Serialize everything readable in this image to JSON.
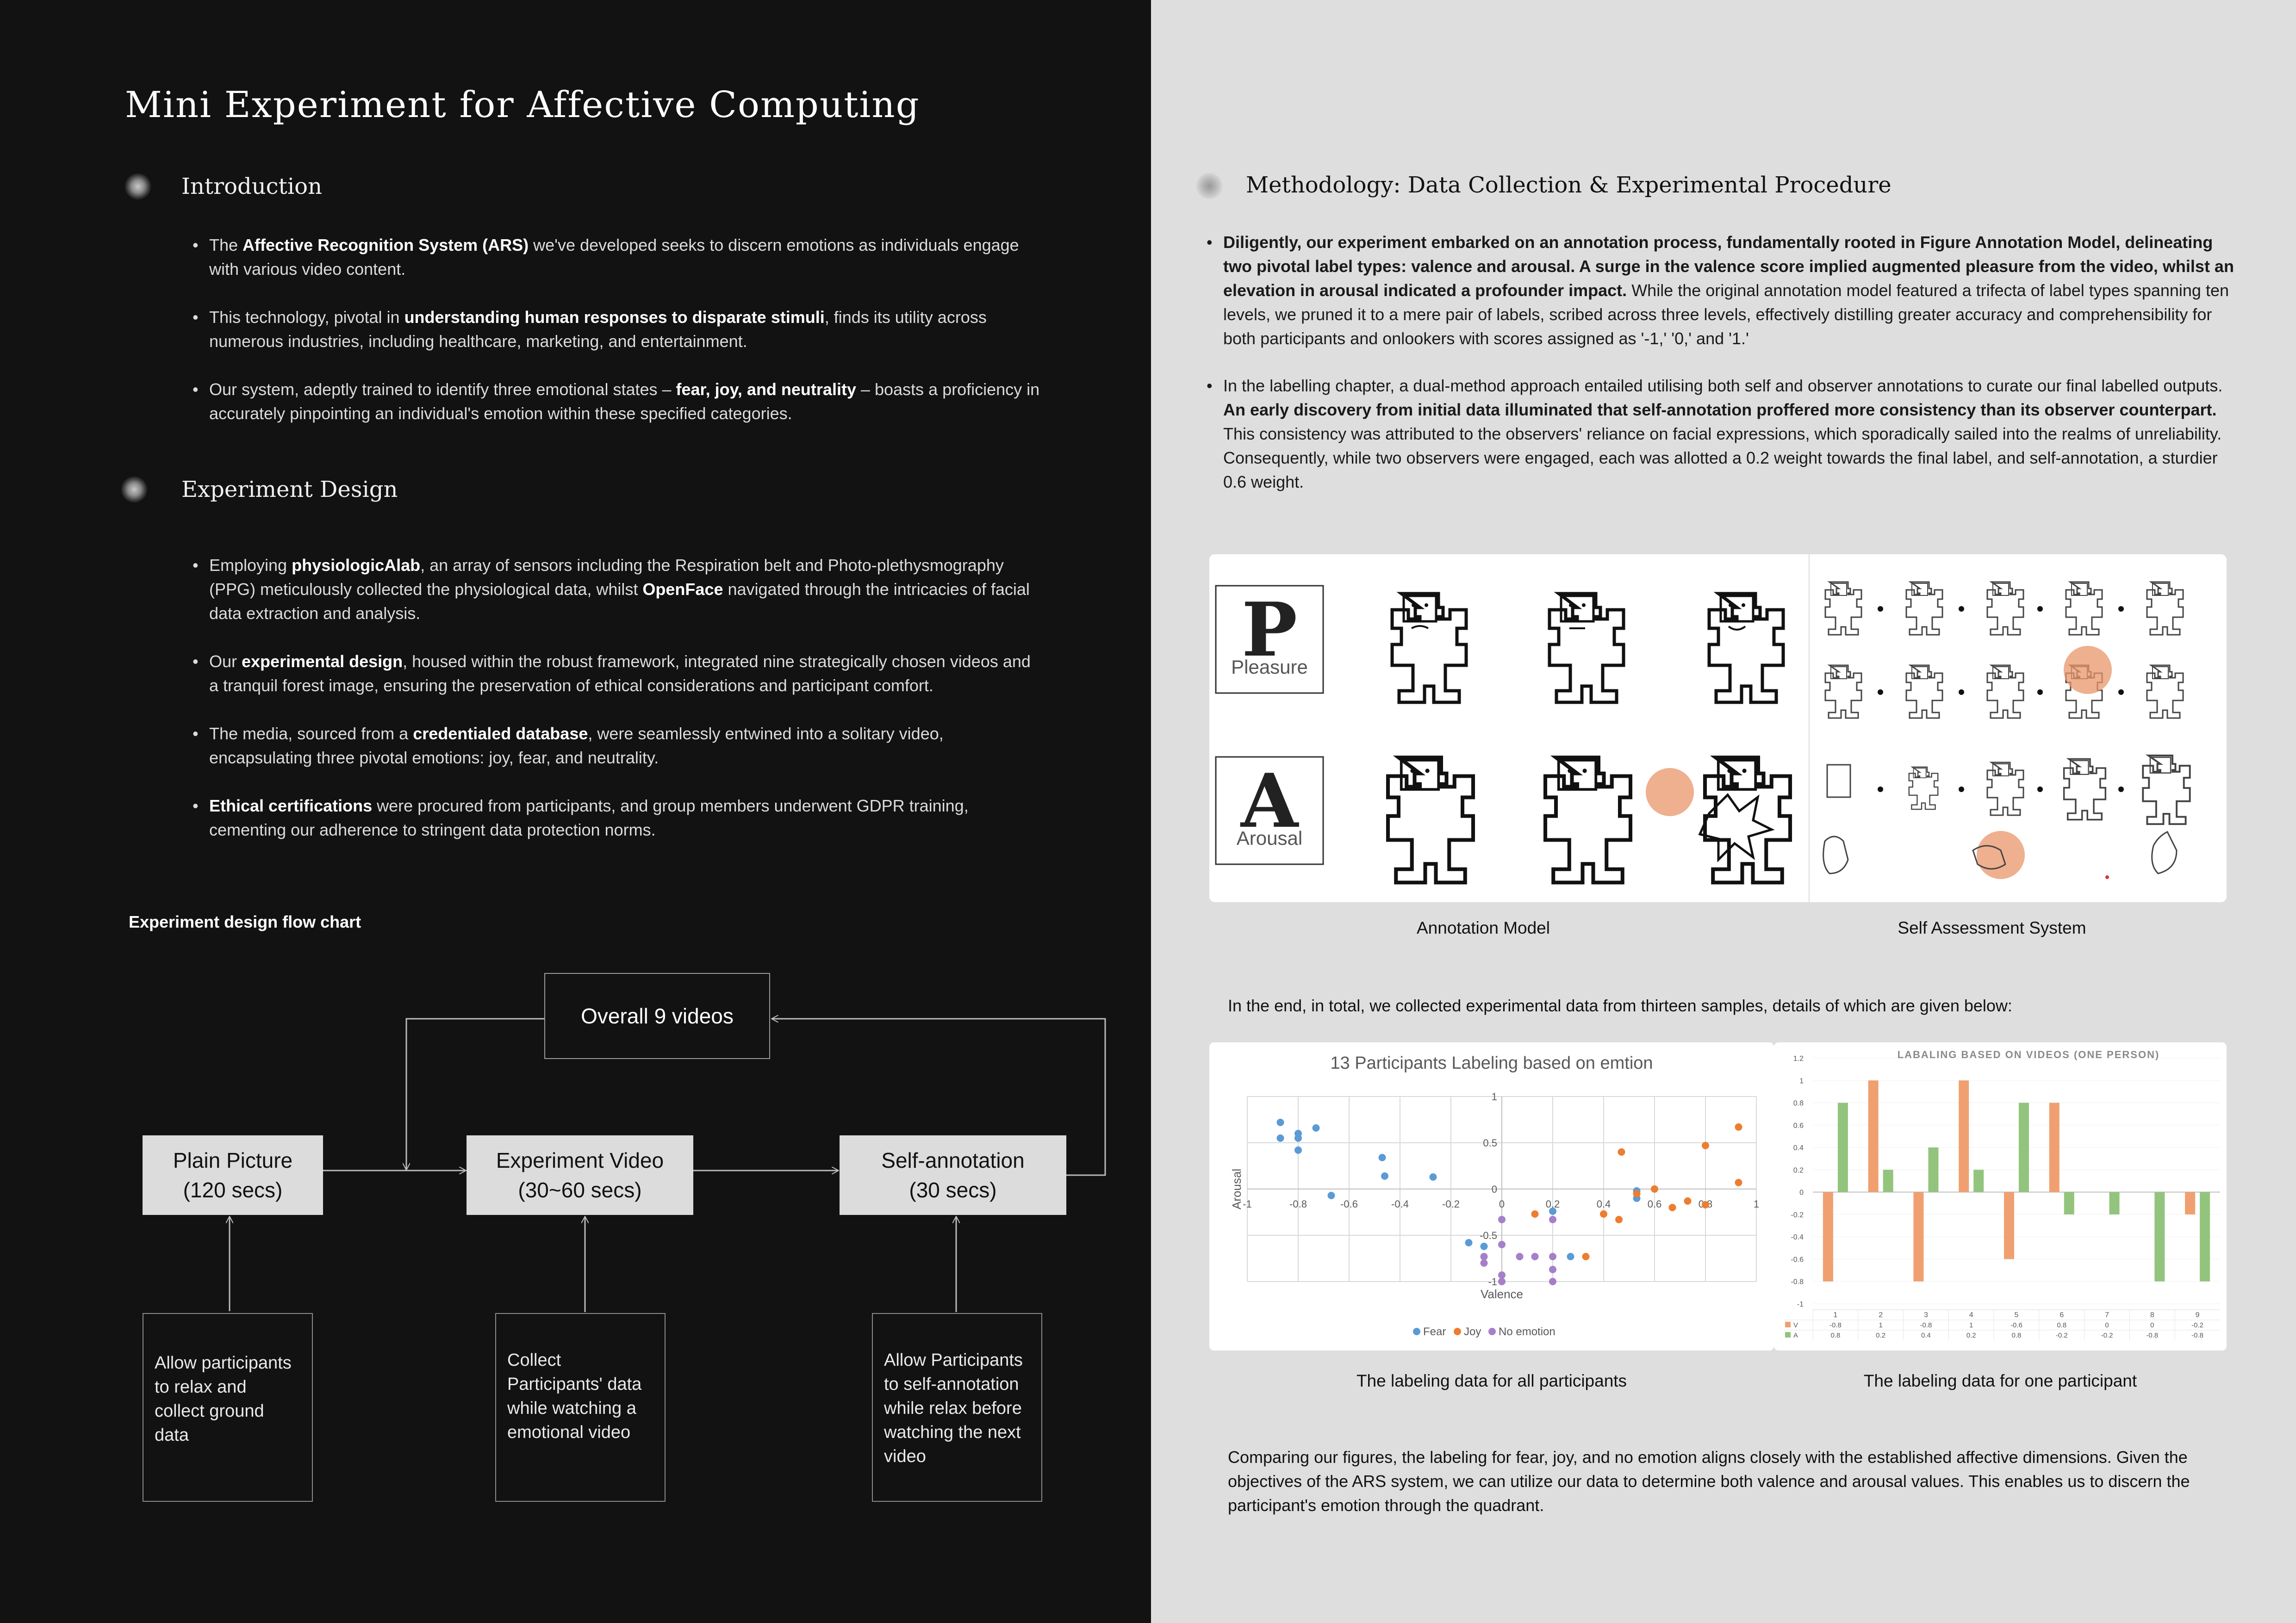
{
  "title": "Mini Experiment for Affective Computing",
  "intro": {
    "heading": "Introduction",
    "bullets": [
      {
        "pre": "The ",
        "bold": "Affective Recognition System (ARS)",
        "post": " we've developed seeks to discern emotions as individuals engage with various video content."
      },
      {
        "pre": "This technology, pivotal in ",
        "bold": "understanding human responses to disparate stimuli",
        "post": ", finds its utility across numerous industries, including healthcare, marketing, and entertainment."
      },
      {
        "pre": "Our system, adeptly trained to identify three emotional states – ",
        "bold": "fear, joy, and neutrality",
        "post": " – boasts a proficiency in accurately pinpointing an individual's emotion within these specified categories."
      }
    ]
  },
  "design": {
    "heading": "Experiment Design",
    "b1": {
      "t1": "Employing ",
      "b1": "physiologicAlab",
      "t2": ", an array of sensors including the Respiration belt and Photo-plethysmography (PPG) meticulously collected the physiological data, whilst ",
      "b2": "OpenFace",
      "t3": " navigated through the intricacies of facial data extraction and analysis."
    },
    "bullets": [
      {
        "pre": "Our ",
        "bold": "experimental design",
        "post": ", housed within the robust framework, integrated nine strategically chosen videos and a tranquil forest image, ensuring the preservation of ethical considerations and participant comfort."
      },
      {
        "pre": "The media, sourced from a ",
        "bold": "credentialed database",
        "post": ", were seamlessly entwined into a solitary video, encapsulating three pivotal emotions: joy, fear, and neutrality."
      },
      {
        "pre": "",
        "bold": "Ethical certifications",
        "post": " were procured from participants, and group members underwent GDPR training, cementing our adherence to stringent data protection norms."
      }
    ]
  },
  "flowchart": {
    "label": "Experiment design flow chart",
    "top": "Overall 9 videos",
    "steps": [
      {
        "line1": "Plain Picture",
        "line2": "(120 secs)",
        "note": "Allow participants to relax and collect ground data"
      },
      {
        "line1": "Experiment Video",
        "line2": "(30~60 secs)",
        "note": "Collect Participants' data while watching a emotional video"
      },
      {
        "line1": "Self-annotation",
        "line2": "(30 secs)",
        "note": "Allow Participants to self-annotation while relax before watching the next video"
      }
    ]
  },
  "methodology": {
    "heading": "Methodology: Data Collection & Experimental Procedure",
    "b1": {
      "bold": "Diligently, our experiment embarked on an annotation process, fundamentally rooted in Figure Annotation Model, delineating two pivotal label types: valence and arousal. A surge in the valence score implied augmented pleasure from the video, whilst an elevation in arousal indicated a profounder impact.",
      "post": " While the original annotation model featured a trifecta of label types spanning ten levels, we pruned it to a mere pair of labels, scribed across three levels, effectively distilling greater accuracy and comprehensibility for both participants and onlookers with scores assigned as '-1,' '0,' and '1.'"
    },
    "b2": {
      "pre": "In the labelling chapter, a dual-method approach entailed utilising both self and observer annotations to curate our final labelled outputs. ",
      "bold": "An early discovery from initial data illuminated that self-annotation proffered more consistency than its observer counterpart.",
      "post": " This consistency was attributed to the observers' reliance on facial expressions, which sporadically sailed into the realms of unreliability. Consequently, while two observers were engaged, each was allotted a 0.2 weight towards the final label, and self-annotation, a sturdier 0.6 weight."
    }
  },
  "sam": {
    "p_letter": "P",
    "p_label": "Pleasure",
    "a_letter": "A",
    "a_label": "Arousal",
    "caption_left": "Annotation Model",
    "caption_right": "Self Assessment System"
  },
  "summary_text": "In the end, in total, we collected experimental data from thirteen samples, details of which are given below:",
  "chart_data": [
    {
      "type": "scatter",
      "title": "13 Participants Labeling based on emtion",
      "xlabel": "Valence",
      "ylabel": "Arousal",
      "xlim": [
        -1,
        1
      ],
      "ylim": [
        -1,
        1
      ],
      "xticks": [
        "-1",
        "-0.8",
        "-0.6",
        "-0.4",
        "-0.2",
        "0",
        "0.2",
        "0.4",
        "0.6",
        "0.8",
        "1"
      ],
      "yticks": [
        "1",
        "0.5",
        "0",
        "-0.5",
        "-1"
      ],
      "grid": true,
      "legend": "bottom",
      "series": [
        {
          "name": "Fear",
          "color": "#5b9bd5",
          "points": [
            [
              -0.87,
              0.72
            ],
            [
              -0.87,
              0.55
            ],
            [
              -0.8,
              0.6
            ],
            [
              -0.8,
              0.55
            ],
            [
              -0.8,
              0.42
            ],
            [
              -0.73,
              0.66
            ],
            [
              -0.67,
              -0.07
            ],
            [
              -0.47,
              0.34
            ],
            [
              -0.46,
              0.14
            ],
            [
              -0.27,
              0.13
            ],
            [
              -0.13,
              -0.58
            ],
            [
              -0.07,
              -0.62
            ],
            [
              0.2,
              -0.24
            ],
            [
              0.27,
              -0.73
            ],
            [
              0.53,
              -0.1
            ],
            [
              0.53,
              -0.02
            ]
          ]
        },
        {
          "name": "Joy",
          "color": "#ed7d31",
          "points": [
            [
              0.13,
              -0.27
            ],
            [
              0.33,
              -0.73
            ],
            [
              0.4,
              -0.27
            ],
            [
              0.46,
              -0.33
            ],
            [
              0.47,
              0.4
            ],
            [
              0.53,
              -0.05
            ],
            [
              0.6,
              0.0
            ],
            [
              0.67,
              -0.2
            ],
            [
              0.73,
              -0.13
            ],
            [
              0.8,
              -0.17
            ],
            [
              0.8,
              0.47
            ],
            [
              0.93,
              0.67
            ],
            [
              0.93,
              0.07
            ]
          ]
        },
        {
          "name": "No emotion",
          "color": "#a67fc9",
          "points": [
            [
              0.0,
              -0.33
            ],
            [
              0.0,
              -0.6
            ],
            [
              0.0,
              -0.93
            ],
            [
              0.0,
              -1.0
            ],
            [
              -0.07,
              -0.73
            ],
            [
              -0.07,
              -0.8
            ],
            [
              0.07,
              -0.73
            ],
            [
              0.13,
              -0.73
            ],
            [
              0.2,
              -0.73
            ],
            [
              0.2,
              -0.87
            ],
            [
              0.2,
              -1.0
            ],
            [
              0.2,
              -0.33
            ]
          ]
        }
      ],
      "caption": "The labeling data for all participants"
    },
    {
      "type": "bar",
      "title": "LABALING BASED ON VIDEOS (ONE PERSON)",
      "categories": [
        "1",
        "2",
        "3",
        "4",
        "5",
        "6",
        "7",
        "8",
        "9"
      ],
      "ylim": [
        -1,
        1.2
      ],
      "yticks": [
        "1.2",
        "1",
        "0.8",
        "0.6",
        "0.4",
        "0.2",
        "0",
        "-0.2",
        "-0.4",
        "-0.6",
        "-0.8",
        "-1"
      ],
      "series": [
        {
          "name": "V",
          "color": "#f0a070",
          "values": [
            -0.8,
            1,
            -0.8,
            1,
            -0.6,
            0.8,
            0,
            0,
            -0.2
          ]
        },
        {
          "name": "A",
          "color": "#93c47d",
          "values": [
            0.8,
            0.2,
            0.4,
            0.2,
            0.8,
            -0.2,
            -0.2,
            -0.8,
            -0.8
          ]
        }
      ],
      "value_labels": {
        "V": [
          "-0.8",
          "1",
          "-0.8",
          "1",
          "-0.6",
          "0.8",
          "0",
          "0",
          "-0.2"
        ],
        "A": [
          "0.8",
          "0.2",
          "0.4",
          "0.2",
          "0.8",
          "-0.2",
          "-0.2",
          "-0.8",
          "-0.8"
        ]
      },
      "caption": "The labeling data for one participant"
    }
  ],
  "conclusion": "Comparing our figures, the labeling for fear, joy, and no emotion aligns closely with the established affective dimensions. Given the objectives of the ARS system, we can utilize our data to determine both valence and arousal values. This enables us to discern the participant's emotion through the quadrant.",
  "colors": {
    "left_bg": "#121212",
    "right_bg": "#dedede",
    "accent_circle": "#e8956a"
  }
}
